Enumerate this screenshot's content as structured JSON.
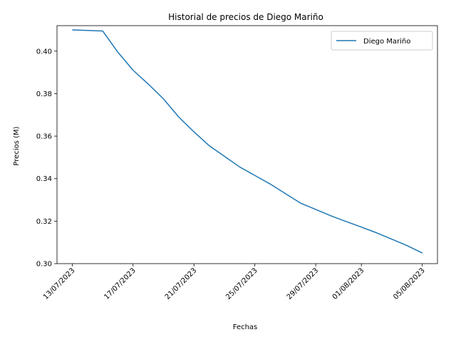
{
  "chart_data": {
    "type": "line",
    "title": "Historial de precios de Diego Mariño",
    "xlabel": "Fechas",
    "ylabel": "Precios (M)",
    "x_ticks": [
      "13/07/2023",
      "17/07/2023",
      "21/07/2023",
      "25/07/2023",
      "29/07/2023",
      "01/08/2023",
      "05/08/2023"
    ],
    "y_ticks": [
      "0.30",
      "0.32",
      "0.34",
      "0.36",
      "0.38",
      "0.40"
    ],
    "ylim": [
      0.3,
      0.412
    ],
    "xlim": [
      "2023-07-12",
      "2023-08-06"
    ],
    "legend_position": "top-right",
    "series": [
      {
        "name": "Diego Mariño",
        "color": "#1f77b4",
        "x": [
          "2023-07-13",
          "2023-07-15",
          "2023-07-16",
          "2023-07-17",
          "2023-07-18",
          "2023-07-19",
          "2023-07-20",
          "2023-07-21",
          "2023-07-22",
          "2023-07-23",
          "2023-07-24",
          "2023-07-25",
          "2023-07-26",
          "2023-07-27",
          "2023-07-28",
          "2023-07-29",
          "2023-07-30",
          "2023-07-31",
          "2023-08-01",
          "2023-08-02",
          "2023-08-03",
          "2023-08-04",
          "2023-08-05"
        ],
        "values": [
          0.41,
          0.4095,
          0.3995,
          0.391,
          0.3845,
          0.3775,
          0.369,
          0.362,
          0.3555,
          0.3505,
          0.3455,
          0.3415,
          0.3375,
          0.333,
          0.3285,
          0.3255,
          0.3225,
          0.3198,
          0.3172,
          0.3145,
          0.3115,
          0.3085,
          0.305
        ]
      }
    ]
  }
}
